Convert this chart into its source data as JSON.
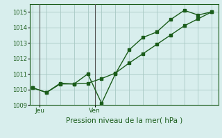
{
  "line1_x": [
    0,
    1,
    2,
    3,
    4,
    5,
    6,
    7,
    8,
    9,
    10,
    11,
    12,
    13
  ],
  "line1_y": [
    1010.1,
    1009.8,
    1010.4,
    1010.35,
    1011.0,
    1009.1,
    1011.0,
    1012.55,
    1013.35,
    1013.7,
    1014.5,
    1015.1,
    1014.8,
    1015.0
  ],
  "line2_x": [
    0,
    1,
    2,
    3,
    4,
    5,
    6,
    7,
    8,
    9,
    10,
    11,
    12,
    13
  ],
  "line2_y": [
    1010.1,
    1009.8,
    1010.35,
    1010.35,
    1010.4,
    1010.7,
    1011.05,
    1011.7,
    1012.3,
    1012.9,
    1013.5,
    1014.1,
    1014.55,
    1015.0
  ],
  "vline_jeu": 0.5,
  "vline_ven": 4.5,
  "ylim_min": 1009.0,
  "ylim_max": 1015.5,
  "xlim_min": -0.2,
  "xlim_max": 13.5,
  "yticks": [
    1009,
    1010,
    1011,
    1012,
    1013,
    1014,
    1015
  ],
  "xtick_pos": [
    0.5,
    4.5
  ],
  "xtick_labels": [
    "Jeu",
    "Ven"
  ],
  "xlabel": "Pression niveau de la mer( hPa )",
  "bg_color": "#d8eeed",
  "grid_color": "#a8c8c4",
  "line_color": "#1a5c1a",
  "vline_color": "#555555",
  "axis_color": "#1a5c1a",
  "text_color": "#1a5c1a",
  "marker_size": 2.8,
  "line_width": 1.0,
  "ytick_fontsize": 6.0,
  "xtick_fontsize": 6.5,
  "xlabel_fontsize": 7.5
}
